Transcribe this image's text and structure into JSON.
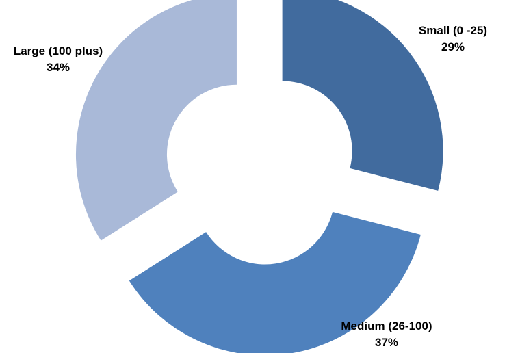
{
  "chart_data": {
    "type": "pie",
    "style": "exploded-doughnut",
    "series": [
      {
        "name": "",
        "categories": [
          "Small (0 -25)",
          "Medium (26-100)",
          "Large (100 plus)"
        ],
        "values": [
          29,
          37,
          34
        ],
        "value_labels": [
          "29%",
          "37%",
          "34%"
        ],
        "colors": [
          "#416b9e",
          "#4f81bd",
          "#a9b9d8"
        ]
      }
    ],
    "title": "",
    "legend": "none",
    "start_angle": "12 o'clock, clockwise"
  }
}
